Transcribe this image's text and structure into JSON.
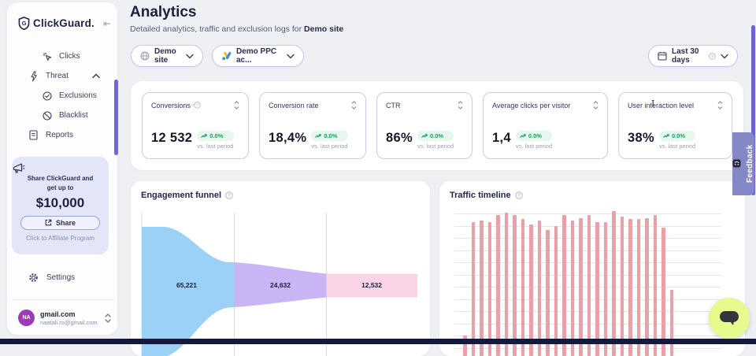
{
  "colors": {
    "accent_purple": "#6c62d6",
    "green": "#1a9c62",
    "funnel_blue": "#9bd0f7",
    "funnel_purple": "#c9b5f3",
    "funnel_pink": "#fbd4e8",
    "bar_pink": "#e9a0a6",
    "lime": "#e6fa8d",
    "feedback_bg": "#8588c7"
  },
  "sidebar": {
    "logo_text": "ClickGuard.",
    "nav": [
      {
        "label": "Clicks",
        "icon": "click-cursor-icon"
      },
      {
        "label": "Threat",
        "icon": "lightning-icon",
        "expanded": true
      },
      {
        "label": "Exclusions",
        "icon": "check-circle-icon"
      },
      {
        "label": "Blacklist",
        "icon": "block-icon"
      },
      {
        "label": "Reports",
        "icon": "document-icon"
      }
    ],
    "promo": {
      "line1": "Share ClickGuard and",
      "line2": "get up to",
      "amount": "$10,000",
      "share_button": "Share",
      "footer": "Click to Affiliate Program"
    },
    "settings_label": "Settings",
    "account": {
      "initials": "NA",
      "name": "gmail.com",
      "email": "naatali.ro@gmail.com"
    }
  },
  "header": {
    "title": "Analytics",
    "subtitle_prefix": "Detailed analytics, traffic and exclusion logs for ",
    "subtitle_target": "Demo site"
  },
  "filters": {
    "site": "Demo site",
    "ppc_account": "Demo PPC ac...",
    "date_range": "Last 30 days"
  },
  "kpis": [
    {
      "label": "Conversions",
      "value": "12 532",
      "change": "0.0%",
      "compare": "vs. last period"
    },
    {
      "label": "Conversion rate",
      "value": "18,4%",
      "change": "0.0%",
      "compare": "vs. last period"
    },
    {
      "label": "CTR",
      "value": "86%",
      "change": "0.0%",
      "compare": "vs. last period"
    },
    {
      "label": "Average clicks per visitor",
      "value": "1,4",
      "change": "0.0%",
      "compare": "vs. last period"
    },
    {
      "label": "User interaction level",
      "value": "38%",
      "change": "0.0%",
      "compare": "vs. last period"
    }
  ],
  "chart_data": [
    {
      "type": "funnel",
      "title": "Engagement funnel",
      "stages": [
        {
          "value": 65221,
          "label": "65,221",
          "color": "#9bd0f7"
        },
        {
          "value": 24632,
          "label": "24,632",
          "color": "#c9b5f3"
        },
        {
          "value": 12532,
          "label": "12,532",
          "color": "#fbd4e8"
        }
      ],
      "legend": "none",
      "grid": "stage-divider-lines"
    },
    {
      "type": "bar",
      "title": "Traffic timeline",
      "values": [
        8,
        92,
        93,
        92,
        97,
        99,
        97,
        94,
        90,
        93,
        86,
        89,
        97,
        93,
        95,
        97,
        92,
        92,
        100,
        96,
        94,
        94,
        95,
        97,
        88,
        42
      ],
      "unit": "relative_height_percent_no_axis_labels_visible",
      "color": "#e9a0a6",
      "grid": "horizontal",
      "legend": "none"
    }
  ],
  "feedback": {
    "label": "Feedback"
  }
}
